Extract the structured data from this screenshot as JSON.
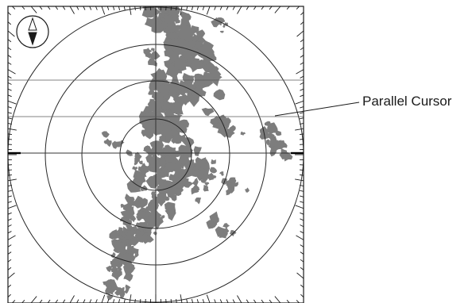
{
  "figure": {
    "callout_label": "Parallel Cursor"
  },
  "colors": {
    "echo": "#7d7d7d",
    "frame": "#1a1a1a",
    "range_ring": "#262626",
    "cursor_line": "#5a5a5a",
    "background": "#ffffff"
  },
  "icons": {
    "north_indicator": "north-arrow-icon"
  }
}
